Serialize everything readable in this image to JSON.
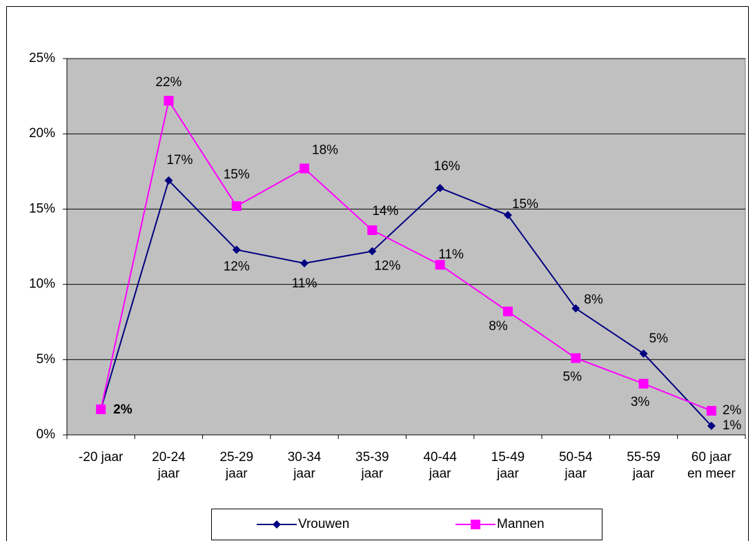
{
  "chart_data": {
    "type": "line",
    "categories": [
      "-20 jaar",
      "20-24\njaar",
      "25-29\njaar",
      "30-34\njaar",
      "35-39\njaar",
      "40-44\njaar",
      "15-49\njaar",
      "50-54\njaar",
      "55-59\njaar",
      "60 jaar\nen meer"
    ],
    "series": [
      {
        "name": "Vrouwen",
        "color": "#000080",
        "marker": "diamond",
        "values": [
          1.7,
          16.9,
          12.3,
          11.4,
          12.2,
          16.4,
          14.6,
          8.4,
          5.4,
          0.6
        ],
        "value_labels": [
          "2%",
          "17%",
          "12%",
          "11%",
          "12%",
          "16%",
          "15%",
          "8%",
          "5%",
          "1%"
        ]
      },
      {
        "name": "Mannen",
        "color": "#ff00ff",
        "marker": "square",
        "values": [
          1.7,
          22.2,
          15.2,
          17.7,
          13.6,
          11.3,
          8.2,
          5.1,
          3.4,
          1.6
        ],
        "value_labels": [
          null,
          "22%",
          "15%",
          "18%",
          "14%",
          "11%",
          "8%",
          "5%",
          "3%",
          "2%"
        ]
      }
    ],
    "ylim": [
      0,
      25
    ],
    "yticks": [
      {
        "value": 0,
        "label": "0%"
      },
      {
        "value": 5,
        "label": "5%"
      },
      {
        "value": 10,
        "label": "10%"
      },
      {
        "value": 15,
        "label": "15%"
      },
      {
        "value": 20,
        "label": "20%"
      },
      {
        "value": 25,
        "label": "25%"
      }
    ],
    "grid": true,
    "legend": "bottom",
    "plot_background": "#c0c0c0"
  }
}
